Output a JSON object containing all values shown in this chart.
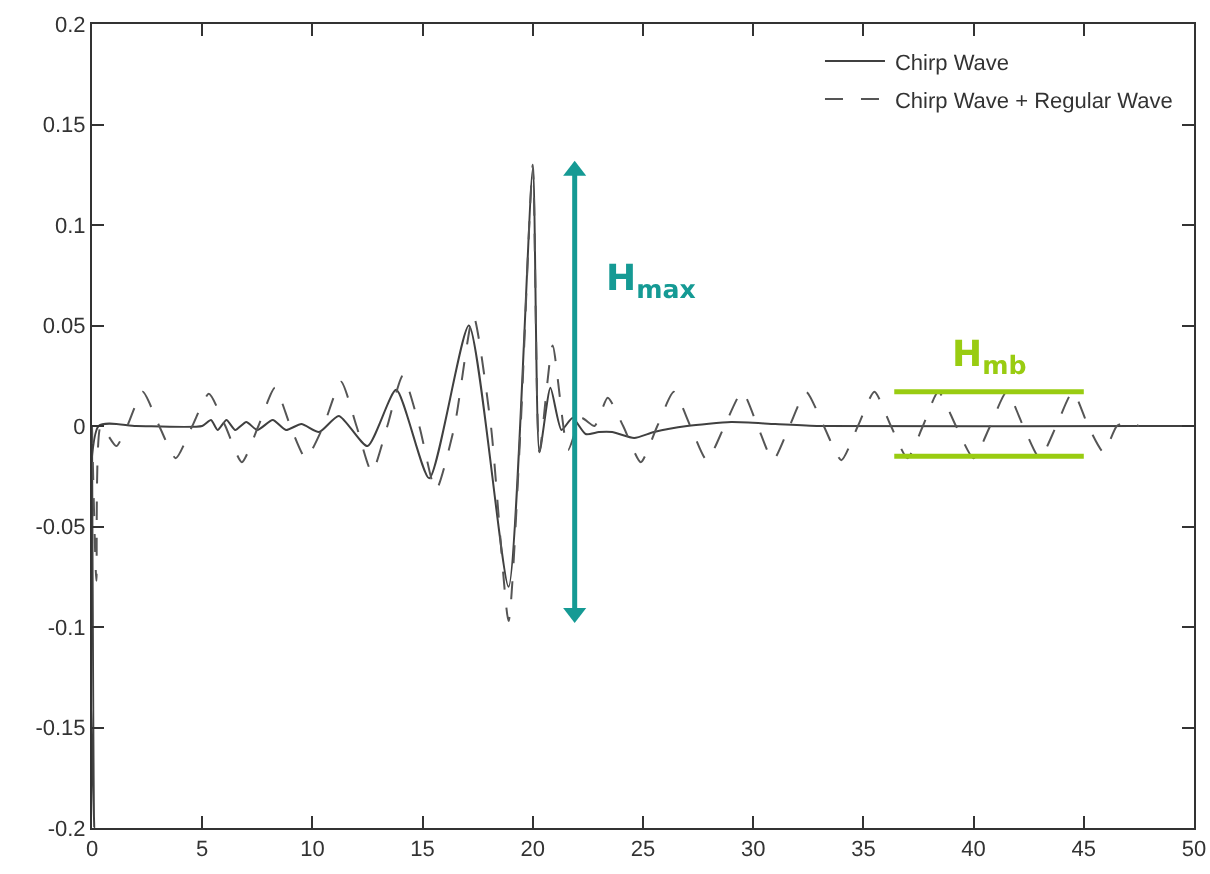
{
  "chart_data": {
    "type": "line",
    "xlim": [
      0,
      50
    ],
    "ylim": [
      -0.2,
      0.2
    ],
    "xticks": [
      0,
      5,
      10,
      15,
      20,
      25,
      30,
      35,
      40,
      45,
      50
    ],
    "yticks": [
      -0.2,
      -0.15,
      -0.1,
      -0.05,
      0,
      0.05,
      0.1,
      0.15,
      0.2
    ],
    "legend": "top right",
    "series": [
      {
        "name": "Chirp Wave",
        "color": "#404040",
        "line_style": "solid",
        "x": [
          0,
          0.1,
          0.3,
          2,
          5,
          5.4,
          5.7,
          6.1,
          6.5,
          7,
          7.5,
          8.2,
          8.8,
          9.5,
          10.3,
          11.2,
          12.5,
          13.8,
          15.3,
          17.1,
          18.9,
          20.0,
          20.3,
          20.8,
          21.3,
          21.8,
          22.4,
          23.0,
          23.6,
          24.6,
          25.5,
          27,
          29,
          31,
          33,
          47.5,
          50
        ],
        "values": [
          0,
          -0.2,
          0,
          0,
          0,
          0.003,
          -0.002,
          0.003,
          -0.002,
          0.002,
          -0.002,
          0.003,
          -0.002,
          0.001,
          -0.003,
          0.005,
          -0.01,
          0.018,
          -0.026,
          0.05,
          -0.08,
          0.128,
          -0.013,
          0.019,
          -0.002,
          0.004,
          -0.004,
          -0.003,
          -0.003,
          -0.006,
          -0.003,
          0,
          0.002,
          0.001,
          0,
          0,
          0
        ]
      },
      {
        "name": "Chirp Wave + Regular Wave",
        "color": "#555555",
        "line_style": "dashed",
        "x": [
          0,
          0.2,
          0.4,
          1.1,
          1.6,
          2.3,
          3.05,
          3.8,
          4.55,
          5.3,
          6.05,
          6.8,
          7.55,
          8.3,
          9.0,
          9.7,
          10.5,
          11.3,
          12.0,
          12.7,
          13.4,
          14.1,
          14.85,
          15.6,
          16.45,
          17.3,
          18.1,
          18.9,
          19.45,
          20.0,
          20.3,
          20.9,
          21.6,
          22.2,
          22.8,
          23.4,
          24.1,
          24.9,
          25.65,
          26.4,
          27.15,
          27.9,
          28.7,
          29.5,
          30.2,
          30.9,
          31.65,
          32.4,
          33.2,
          34.0,
          34.75,
          35.5,
          36.25,
          37.0,
          37.7,
          38.4,
          39.2,
          40.0,
          40.75,
          41.5,
          42.25,
          43.0,
          43.75,
          44.5,
          45.2,
          45.9,
          46.5,
          47.0,
          47.5
        ],
        "values": [
          0,
          -0.077,
          0,
          -0.01,
          0,
          0.017,
          0,
          -0.016,
          0,
          0.016,
          0,
          -0.018,
          0,
          0.019,
          0,
          -0.016,
          0,
          0.022,
          0,
          -0.023,
          0,
          0.025,
          0,
          -0.032,
          0,
          0.055,
          0,
          -0.097,
          0,
          0.13,
          -0.013,
          0.04,
          -0.012,
          0.004,
          0,
          0.014,
          0,
          -0.018,
          0,
          0.017,
          0,
          -0.017,
          0,
          0.017,
          0,
          -0.017,
          0,
          0.017,
          0,
          -0.017,
          0,
          0.017,
          0,
          -0.016,
          0,
          0.017,
          0,
          -0.016,
          0,
          0.017,
          0,
          -0.016,
          0,
          0.017,
          0,
          -0.013,
          0,
          0.002,
          0
        ]
      },
      {
        "type": "line",
        "color": "#159a94",
        "line_style": "solid",
        "marker": "triangle",
        "x": [
          21.9,
          21.9
        ],
        "values": [
          0.127,
          -0.093
        ]
      },
      {
        "type": "line",
        "color": "#99cc11",
        "line_style": "solid",
        "x": [
          36.4,
          45.0
        ],
        "values": [
          0.017,
          0.017
        ]
      },
      {
        "type": "line",
        "color": "#99cc11",
        "line_style": "solid",
        "x": [
          36.4,
          45.0
        ],
        "values": [
          -0.015,
          -0.015
        ]
      }
    ],
    "annotations": [
      "H$_{max}$",
      "H$_{mb}$"
    ]
  }
}
